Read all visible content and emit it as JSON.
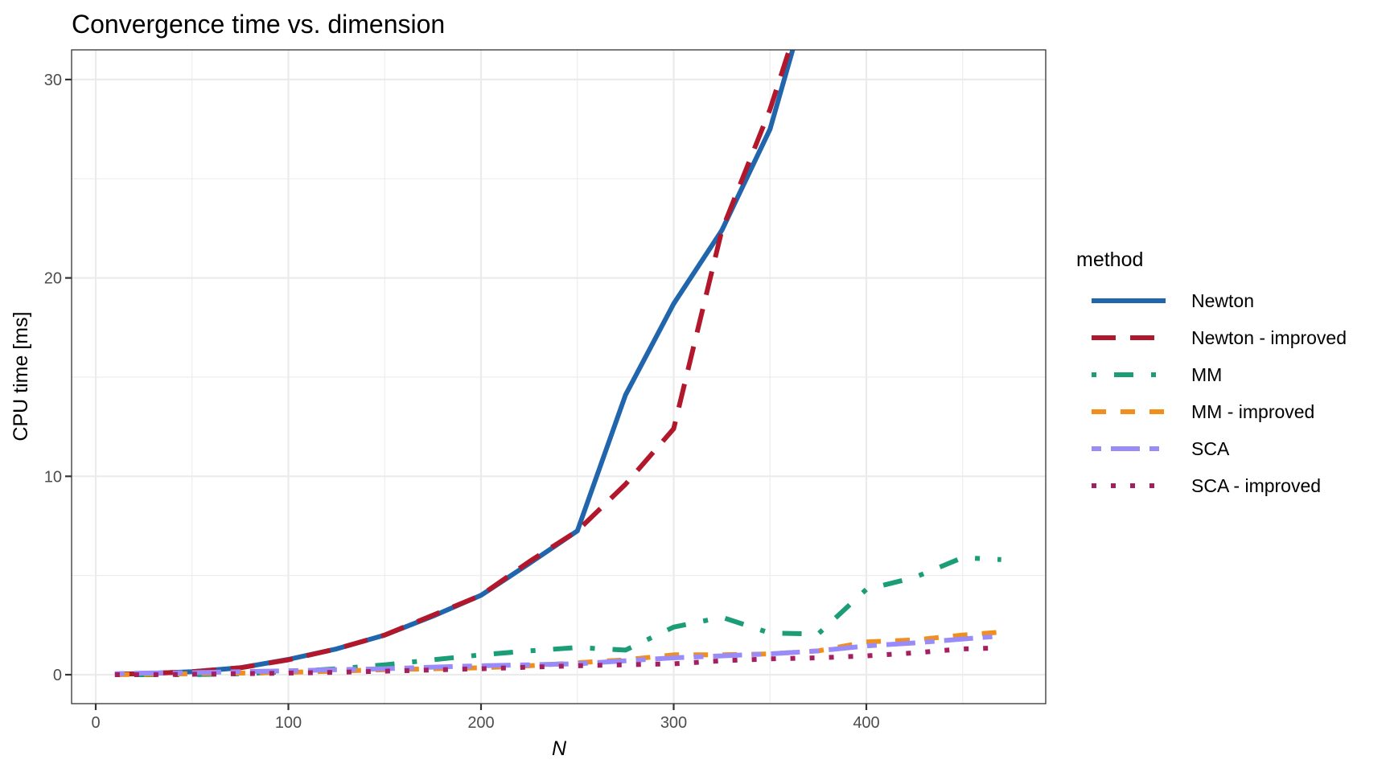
{
  "chart_data": {
    "type": "line",
    "title": "Convergence time vs. dimension",
    "xlabel": "N",
    "ylabel": "CPU time [ms]",
    "xlim": [
      -12,
      494
    ],
    "ylim": [
      -1.5,
      31.5
    ],
    "x_ticks": [
      0,
      100,
      200,
      300,
      400
    ],
    "y_ticks": [
      0,
      10,
      20,
      30
    ],
    "grid": true,
    "legend_title": "method",
    "legend_position": "right",
    "x": [
      10,
      25,
      50,
      75,
      100,
      125,
      150,
      175,
      200,
      225,
      250,
      275,
      300,
      325,
      350,
      375,
      400,
      425,
      450,
      470
    ],
    "series": [
      {
        "name": "Newton",
        "color": "#2166AC",
        "dash": "solid",
        "values": [
          0.03,
          0.05,
          0.15,
          0.35,
          0.77,
          1.3,
          2.0,
          2.95,
          4.0,
          5.6,
          7.25,
          14.1,
          18.7,
          22.4,
          27.5,
          36.0,
          null,
          null,
          null,
          null
        ]
      },
      {
        "name": "Newton - improved",
        "color": "#B2182B",
        "dash": "longdash",
        "values": [
          0.03,
          0.05,
          0.15,
          0.35,
          0.75,
          1.3,
          2.0,
          3.0,
          4.0,
          5.7,
          7.25,
          9.6,
          12.4,
          22.4,
          28.5,
          36.0,
          null,
          null,
          null,
          null
        ]
      },
      {
        "name": "MM",
        "color": "#1B9E77",
        "dash": "dotdash",
        "values": [
          0.0,
          0.0,
          0.0,
          0.05,
          0.15,
          0.3,
          0.5,
          0.75,
          1.0,
          1.2,
          1.37,
          1.24,
          2.4,
          2.9,
          2.1,
          2.05,
          4.3,
          4.9,
          5.9,
          5.8
        ]
      },
      {
        "name": "MM - improved",
        "color": "#F28E1C",
        "dash": "dashed",
        "values": [
          0.0,
          0.02,
          0.05,
          0.08,
          0.12,
          0.18,
          0.25,
          0.3,
          0.35,
          0.45,
          0.6,
          0.75,
          1.0,
          1.0,
          1.05,
          1.2,
          1.65,
          1.75,
          2.0,
          2.15
        ]
      },
      {
        "name": "SCA",
        "color": "#9A8CF8",
        "dash": "twodash",
        "values": [
          0.05,
          0.08,
          0.1,
          0.15,
          0.2,
          0.25,
          0.3,
          0.38,
          0.45,
          0.5,
          0.55,
          0.7,
          0.85,
          0.95,
          1.05,
          1.2,
          1.45,
          1.6,
          1.8,
          1.95
        ]
      },
      {
        "name": "SCA - improved",
        "color": "#A51E5F",
        "dash": "dotted",
        "values": [
          0.0,
          0.0,
          0.02,
          0.05,
          0.08,
          0.12,
          0.18,
          0.24,
          0.3,
          0.38,
          0.45,
          0.5,
          0.55,
          0.7,
          0.8,
          0.85,
          0.95,
          1.1,
          1.3,
          1.35
        ]
      }
    ]
  }
}
